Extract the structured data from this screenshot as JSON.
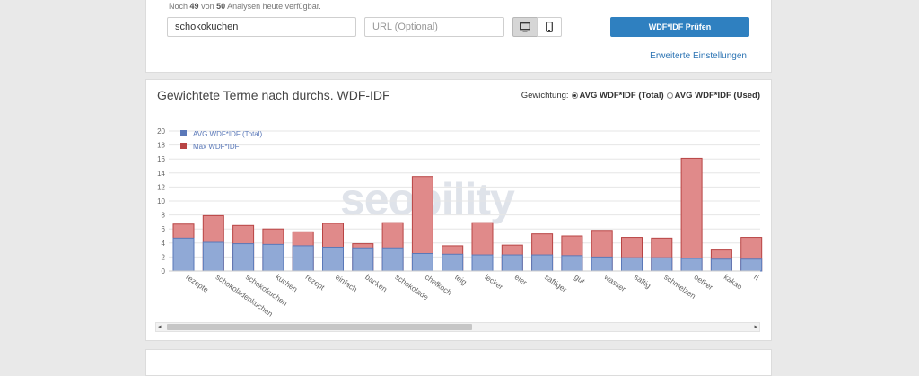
{
  "top": {
    "quota_prefix": "Noch",
    "quota_used": "49",
    "quota_mid": "von",
    "quota_total": "50",
    "quota_suffix": "Analysen heute verfügbar.",
    "keyword_value": "schokokuchen",
    "url_placeholder": "URL (Optional)",
    "check_label": "WDF*IDF Prüfen",
    "advanced_label": "Erweiterte Einstellungen"
  },
  "chart_panel": {
    "title": "Gewichtete Terme nach durchs. WDF-IDF",
    "weighting_label": "Gewichtung:",
    "option_total": "AVG WDF*IDF (Total)",
    "option_used": "AVG WDF*IDF (Used)",
    "watermark": "seobility"
  },
  "colors": {
    "avg": "#90a9d6",
    "avg_stroke": "#5a78b8",
    "max": "#e08a8a",
    "max_stroke": "#b84444",
    "button": "#2f80c0"
  },
  "chart_data": {
    "type": "bar",
    "stacked": true,
    "categories": [
      "rezepte",
      "schokoladenkuchen",
      "schokokuchen",
      "kuchen",
      "rezept",
      "einfach",
      "backen",
      "schokolade",
      "chefkoch",
      "teig",
      "lecker",
      "eier",
      "saftiger",
      "gut",
      "wasser",
      "saftig",
      "schmelzen",
      "oetker",
      "kakao",
      "ri"
    ],
    "series": [
      {
        "name": "AVG WDF*IDF (Total)",
        "values": [
          4.7,
          4.1,
          3.9,
          3.8,
          3.6,
          3.4,
          3.3,
          3.3,
          2.5,
          2.4,
          2.3,
          2.3,
          2.3,
          2.2,
          2.0,
          1.9,
          1.9,
          1.8,
          1.7,
          1.7
        ]
      },
      {
        "name": "Max WDF*IDF",
        "values": [
          6.7,
          7.9,
          6.5,
          6.0,
          5.6,
          6.8,
          3.9,
          6.9,
          13.5,
          3.6,
          6.9,
          3.7,
          5.3,
          5.0,
          5.8,
          4.8,
          4.7,
          16.1,
          3.0,
          4.8
        ]
      }
    ],
    "ylim": [
      0,
      20
    ],
    "yticks": [
      0,
      2,
      4,
      6,
      8,
      10,
      12,
      14,
      16,
      18,
      20
    ],
    "grid": true,
    "legend": "top-left"
  }
}
